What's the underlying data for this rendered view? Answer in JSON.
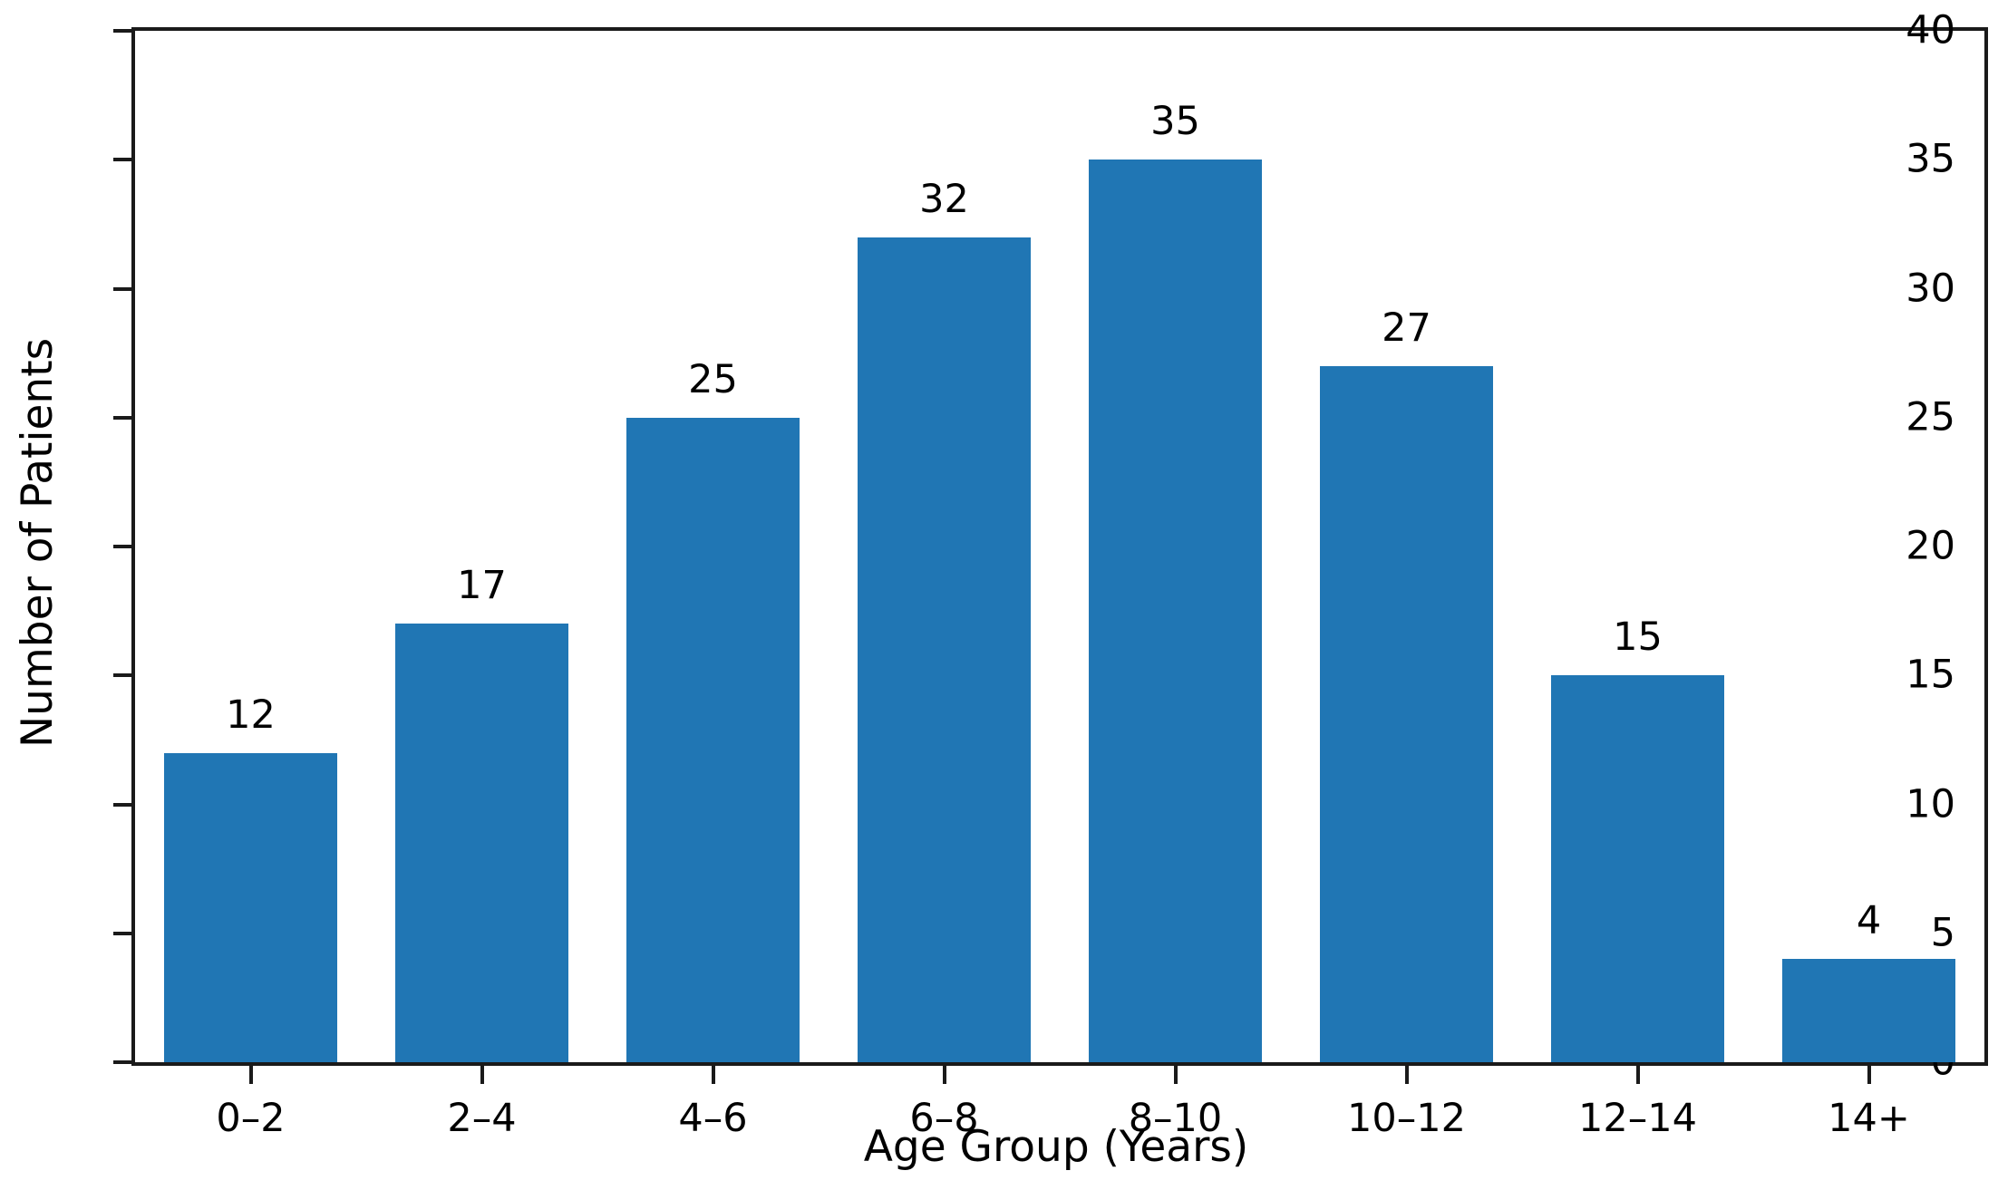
{
  "chart_data": {
    "type": "bar",
    "categories": [
      "0–2",
      "2–4",
      "4–6",
      "6–8",
      "8–10",
      "10–12",
      "12–14",
      "14+"
    ],
    "values": [
      12,
      17,
      25,
      32,
      35,
      27,
      15,
      4
    ],
    "xlabel": "Age Group (Years)",
    "ylabel": "Number of Patients",
    "ylim": [
      0,
      40
    ],
    "yticks": [
      0,
      5,
      10,
      15,
      20,
      25,
      30,
      35,
      40
    ],
    "bar_value_labels": [
      "12",
      "17",
      "25",
      "32",
      "35",
      "27",
      "15",
      "4"
    ],
    "bar_color": "#2076b4",
    "spine_color": "#1a1a1a",
    "text_color": "#000000",
    "background_color": "#ffffff",
    "grid": false,
    "legend": null,
    "layout": {
      "bar_width_fraction": 0.75,
      "box_spines": true
    }
  }
}
